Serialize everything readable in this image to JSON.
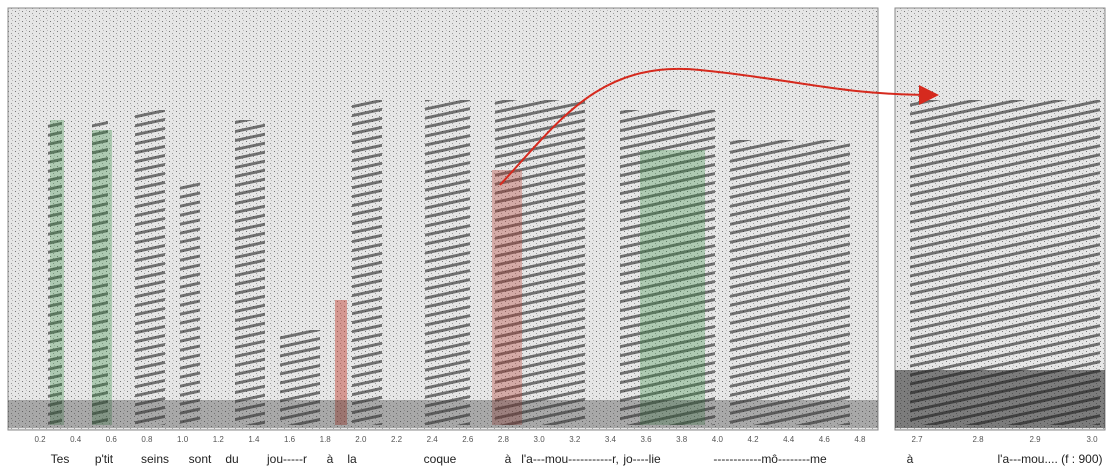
{
  "left_panel": {
    "xticks": [
      "0.2",
      "0.4",
      "0.6",
      "0.8",
      "1.0",
      "1.2",
      "1.4",
      "1.6",
      "1.8",
      "2.0",
      "2.2",
      "2.4",
      "2.6",
      "2.8",
      "3.0",
      "3.2",
      "3.4",
      "3.6",
      "3.8",
      "4.0",
      "4.2",
      "4.4",
      "4.6",
      "4.8"
    ],
    "lyrics": [
      "Tes",
      "p'tit",
      "seins",
      "sont",
      "du",
      "jou-----r",
      "à",
      "la",
      "coque",
      "à",
      "l'a---mou-----------r,",
      "jo----lie",
      "------------mô--------me"
    ]
  },
  "right_panel": {
    "xticks": [
      "2.7",
      "2.8",
      "2.9",
      "3.0"
    ],
    "lyrics": [
      "à",
      "l'a---mou.... (f : 900)"
    ]
  }
}
